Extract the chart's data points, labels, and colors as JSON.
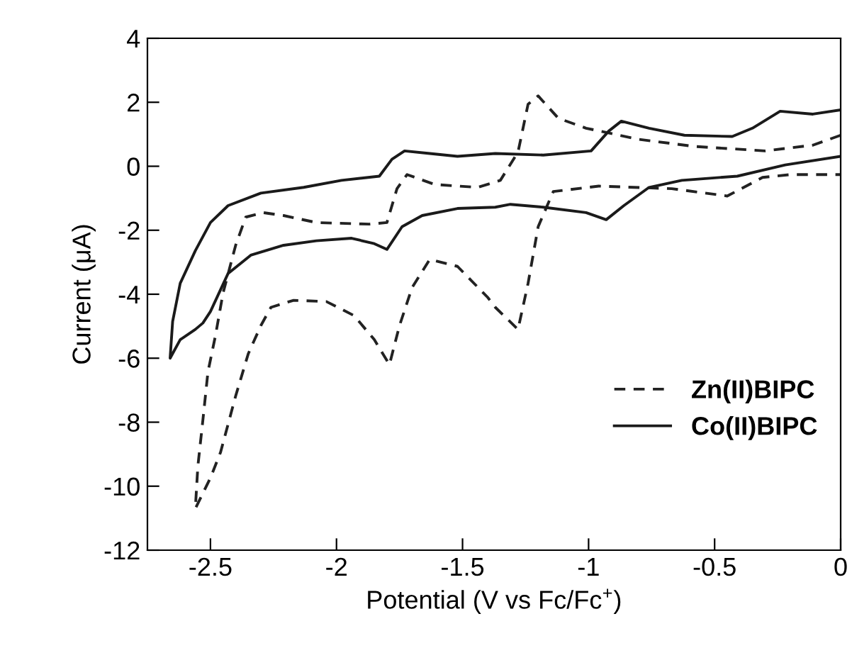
{
  "chart_data": {
    "type": "line",
    "xlabel": "Potential (V vs Fc/Fc$^{+}$)",
    "ylabel": "Current (μA)",
    "xlim": [
      -2.75,
      0
    ],
    "ylim": [
      -12,
      4
    ],
    "xticks": [
      -2.5,
      -2,
      -1.5,
      -1,
      -0.5,
      0
    ],
    "yticks": [
      -12,
      -10,
      -8,
      -6,
      -4,
      -2,
      0,
      2,
      4
    ],
    "grid": false,
    "legend": "lower right",
    "marker": "none",
    "series": [
      {
        "name": "Zn(II)BIPC",
        "color": "#222222",
        "line_style": "dashed",
        "x": [
          0,
          -0.11,
          -0.3,
          -0.58,
          -0.8,
          -1.01,
          -1.12,
          -1.2,
          -1.24,
          -1.28,
          -1.35,
          -1.44,
          -1.61,
          -1.72,
          -1.76,
          -1.8,
          -1.87,
          -2.08,
          -2.21,
          -2.29,
          -2.36,
          -2.4,
          -2.45,
          -2.48,
          -2.51,
          -2.53,
          -2.55,
          -2.56,
          -2.5,
          -2.46,
          -2.4,
          -2.35,
          -2.3,
          -2.26,
          -2.17,
          -2.04,
          -1.93,
          -1.85,
          -1.79,
          -1.75,
          -1.7,
          -1.63,
          -1.52,
          -1.4,
          -1.37,
          -1.28,
          -1.24,
          -1.2,
          -1.14,
          -0.96,
          -0.67,
          -0.45,
          -0.31,
          -0.2,
          0
        ],
        "values": [
          0.97,
          0.66,
          0.48,
          0.62,
          0.84,
          1.19,
          1.5,
          2.2,
          1.94,
          0.44,
          -0.44,
          -0.66,
          -0.57,
          -0.26,
          -0.7,
          -1.76,
          -1.81,
          -1.76,
          -1.54,
          -1.45,
          -1.59,
          -2.47,
          -3.96,
          -5.29,
          -6.43,
          -7.93,
          -9.38,
          -10.7,
          -9.74,
          -8.94,
          -7.18,
          -5.86,
          -4.98,
          -4.41,
          -4.19,
          -4.23,
          -4.67,
          -5.42,
          -6.2,
          -4.98,
          -3.79,
          -2.91,
          -3.13,
          -4.1,
          -4.41,
          -5.1,
          -3.66,
          -1.89,
          -0.79,
          -0.62,
          -0.7,
          -0.93,
          -0.35,
          -0.26,
          -0.26
        ]
      },
      {
        "name": "Co(II)BIPC",
        "color": "#1a1a1a",
        "line_style": "solid",
        "x": [
          0,
          -0.11,
          -0.24,
          -0.35,
          -0.43,
          -0.62,
          -0.76,
          -0.87,
          -0.92,
          -0.99,
          -1.18,
          -1.37,
          -1.52,
          -1.63,
          -1.73,
          -1.78,
          -1.83,
          -1.98,
          -2.13,
          -2.3,
          -2.43,
          -2.5,
          -2.56,
          -2.62,
          -2.65,
          -2.66,
          -2.62,
          -2.56,
          -2.53,
          -2.5,
          -2.43,
          -2.34,
          -2.21,
          -2.08,
          -1.94,
          -1.85,
          -1.8,
          -1.74,
          -1.66,
          -1.52,
          -1.37,
          -1.31,
          -1.18,
          -1.01,
          -0.93,
          -0.86,
          -0.76,
          -0.63,
          -0.41,
          -0.22,
          0
        ],
        "values": [
          1.76,
          1.63,
          1.72,
          1.19,
          0.93,
          0.97,
          1.19,
          1.41,
          1.1,
          0.48,
          0.35,
          0.4,
          0.31,
          0.4,
          0.48,
          0.22,
          -0.31,
          -0.44,
          -0.66,
          -0.84,
          -1.23,
          -1.76,
          -2.64,
          -3.66,
          -4.85,
          -6.0,
          -5.42,
          -5.1,
          -4.9,
          -4.54,
          -3.35,
          -2.78,
          -2.47,
          -2.33,
          -2.25,
          -2.42,
          -2.6,
          -1.89,
          -1.54,
          -1.32,
          -1.28,
          -1.19,
          -1.28,
          -1.45,
          -1.67,
          -1.23,
          -0.66,
          -0.44,
          -0.31,
          0.04,
          0.31
        ]
      }
    ]
  }
}
